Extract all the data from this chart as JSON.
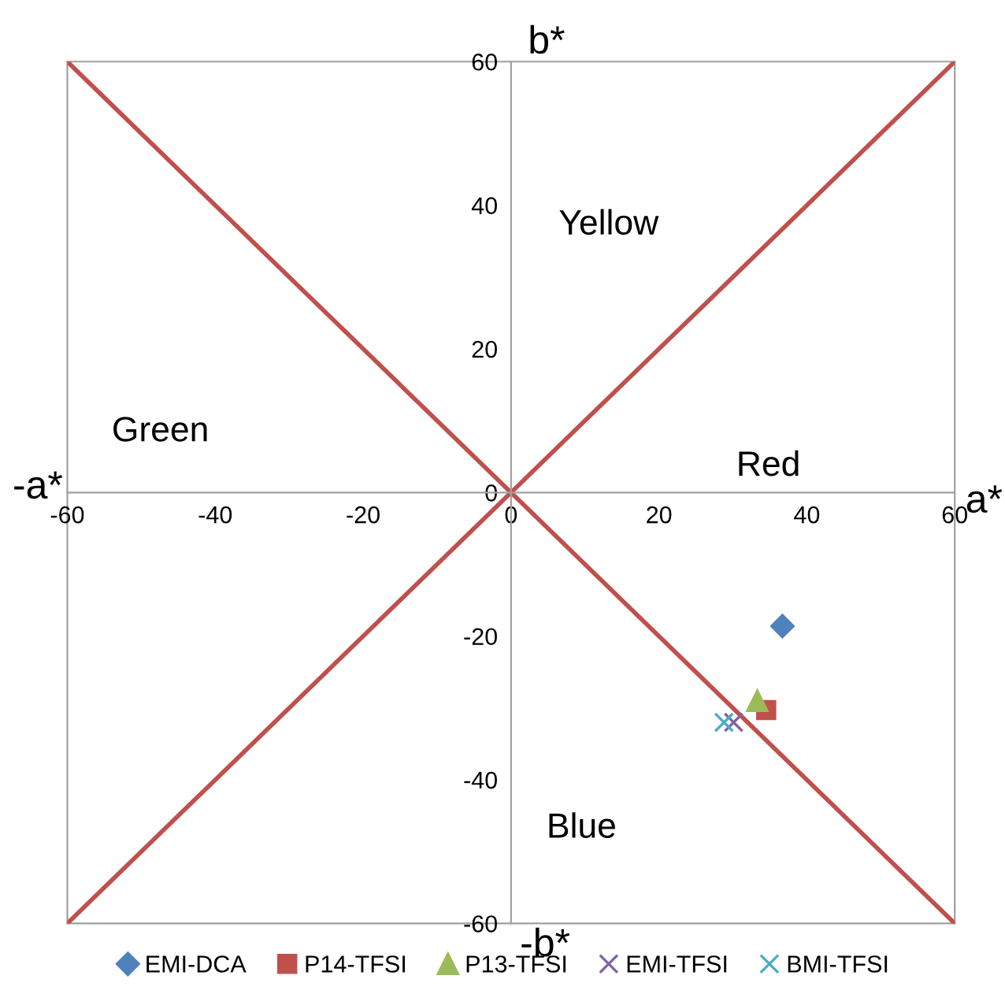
{
  "chart_data": {
    "type": "scatter",
    "xlabel": "a*",
    "ylabel": "b*",
    "xlim": [
      -60,
      60
    ],
    "ylim": [
      -60,
      60
    ],
    "xticks": [
      -60,
      -40,
      -20,
      0,
      20,
      40,
      60
    ],
    "yticks": [
      -60,
      -40,
      -20,
      0,
      20,
      40,
      60
    ],
    "grid": false,
    "legend": "bottom",
    "series": [
      {
        "type": "line",
        "color": "#c0504d",
        "x": [
          -60,
          60
        ],
        "values": [
          -60,
          60
        ],
        "marker": "none",
        "line_style": "solid"
      },
      {
        "type": "line",
        "color": "#c0504d",
        "x": [
          -60,
          60
        ],
        "values": [
          60,
          -60
        ],
        "marker": "none",
        "line_style": "solid"
      },
      {
        "name": "EMI-DCA",
        "color": "#4f81bd",
        "marker": "diamond",
        "x": [
          36.7
        ],
        "values": [
          -18.6
        ]
      },
      {
        "name": "P14-TFSI",
        "color": "#c0504d",
        "marker": "square",
        "x": [
          34.5
        ],
        "values": [
          -30.3
        ]
      },
      {
        "name": "P13-TFSI",
        "color": "#9bbb59",
        "marker": "triangle",
        "x": [
          33.3
        ],
        "values": [
          -29
        ]
      },
      {
        "name": "EMI-TFSI",
        "color": "#8064a2",
        "marker": "cross",
        "x": [
          30.1
        ],
        "values": [
          -32
        ]
      },
      {
        "name": "BMI-TFSI",
        "color": "#4bacc6",
        "marker": "cross",
        "x": [
          28.8
        ],
        "values": [
          -32
        ]
      }
    ],
    "annotations": [
      "Yellow",
      "Green",
      "Red",
      "Blue",
      "-a*",
      "-b*"
    ]
  }
}
